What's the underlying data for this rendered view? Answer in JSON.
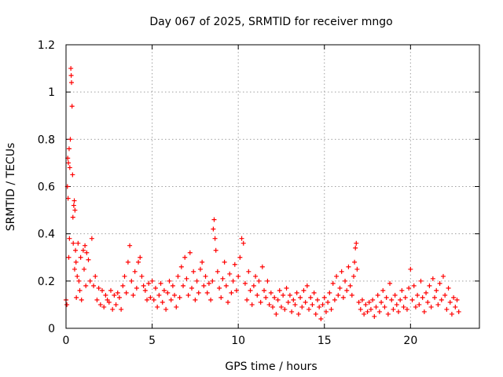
{
  "chart_data": {
    "type": "scatter",
    "title": "Day 067 of 2025, SRMTID for receiver mngo",
    "xlabel": "GPS time / hours",
    "ylabel": "SRMTID / TECUs",
    "xlim": [
      0,
      24
    ],
    "ylim": [
      0,
      1.2
    ],
    "x_ticks": [
      0,
      5,
      10,
      15,
      20
    ],
    "y_ticks": [
      0,
      0.2,
      0.4,
      0.6,
      0.8,
      1,
      1.2
    ],
    "x_tick_labels": [
      "0",
      "5",
      "10",
      "15",
      "20"
    ],
    "y_tick_labels": [
      "0",
      "0.2",
      "0.4",
      "0.6",
      "0.8",
      "1",
      "1.2"
    ],
    "grid": true,
    "marker": "+",
    "series": [
      {
        "name": "SRMTID",
        "color": "#ff0000",
        "points": [
          [
            0.0,
            0.12
          ],
          [
            0.05,
            0.1
          ],
          [
            0.08,
            0.6
          ],
          [
            0.1,
            0.72
          ],
          [
            0.12,
            0.55
          ],
          [
            0.14,
            0.7
          ],
          [
            0.16,
            0.3
          ],
          [
            0.18,
            0.76
          ],
          [
            0.2,
            0.38
          ],
          [
            0.22,
            0.68
          ],
          [
            0.25,
            0.8
          ],
          [
            0.28,
            1.1
          ],
          [
            0.3,
            1.07
          ],
          [
            0.32,
            1.04
          ],
          [
            0.35,
            0.94
          ],
          [
            0.38,
            0.65
          ],
          [
            0.4,
            0.47
          ],
          [
            0.42,
            0.36
          ],
          [
            0.45,
            0.52
          ],
          [
            0.48,
            0.54
          ],
          [
            0.5,
            0.25
          ],
          [
            0.52,
            0.5
          ],
          [
            0.55,
            0.33
          ],
          [
            0.58,
            0.28
          ],
          [
            0.6,
            0.13
          ],
          [
            0.65,
            0.22
          ],
          [
            0.7,
            0.36
          ],
          [
            0.75,
            0.2
          ],
          [
            0.8,
            0.16
          ],
          [
            0.85,
            0.3
          ],
          [
            0.9,
            0.12
          ],
          [
            1.0,
            0.33
          ],
          [
            1.05,
            0.25
          ],
          [
            1.1,
            0.35
          ],
          [
            1.15,
            0.18
          ],
          [
            1.2,
            0.32
          ],
          [
            1.3,
            0.29
          ],
          [
            1.4,
            0.2
          ],
          [
            1.5,
            0.38
          ],
          [
            1.6,
            0.18
          ],
          [
            1.7,
            0.22
          ],
          [
            1.8,
            0.12
          ],
          [
            1.9,
            0.17
          ],
          [
            2.0,
            0.1
          ],
          [
            2.1,
            0.16
          ],
          [
            2.2,
            0.09
          ],
          [
            2.3,
            0.14
          ],
          [
            2.4,
            0.12
          ],
          [
            2.5,
            0.11
          ],
          [
            2.6,
            0.16
          ],
          [
            2.7,
            0.08
          ],
          [
            2.8,
            0.14
          ],
          [
            2.9,
            0.1
          ],
          [
            3.0,
            0.15
          ],
          [
            3.1,
            0.13
          ],
          [
            3.2,
            0.08
          ],
          [
            3.3,
            0.18
          ],
          [
            3.4,
            0.22
          ],
          [
            3.5,
            0.15
          ],
          [
            3.6,
            0.28
          ],
          [
            3.7,
            0.35
          ],
          [
            3.8,
            0.2
          ],
          [
            3.9,
            0.14
          ],
          [
            4.0,
            0.24
          ],
          [
            4.1,
            0.17
          ],
          [
            4.2,
            0.28
          ],
          [
            4.3,
            0.3
          ],
          [
            4.4,
            0.22
          ],
          [
            4.5,
            0.18
          ],
          [
            4.6,
            0.16
          ],
          [
            4.7,
            0.12
          ],
          [
            4.8,
            0.19
          ],
          [
            4.9,
            0.13
          ],
          [
            5.0,
            0.2
          ],
          [
            5.1,
            0.12
          ],
          [
            5.2,
            0.17
          ],
          [
            5.3,
            0.09
          ],
          [
            5.4,
            0.14
          ],
          [
            5.5,
            0.19
          ],
          [
            5.6,
            0.11
          ],
          [
            5.7,
            0.16
          ],
          [
            5.8,
            0.08
          ],
          [
            5.9,
            0.15
          ],
          [
            6.0,
            0.2
          ],
          [
            6.1,
            0.12
          ],
          [
            6.2,
            0.18
          ],
          [
            6.3,
            0.14
          ],
          [
            6.4,
            0.09
          ],
          [
            6.5,
            0.22
          ],
          [
            6.6,
            0.13
          ],
          [
            6.7,
            0.26
          ],
          [
            6.8,
            0.18
          ],
          [
            6.9,
            0.3
          ],
          [
            7.0,
            0.21
          ],
          [
            7.1,
            0.14
          ],
          [
            7.2,
            0.32
          ],
          [
            7.3,
            0.17
          ],
          [
            7.4,
            0.24
          ],
          [
            7.5,
            0.12
          ],
          [
            7.6,
            0.2
          ],
          [
            7.7,
            0.15
          ],
          [
            7.8,
            0.25
          ],
          [
            7.9,
            0.28
          ],
          [
            8.0,
            0.18
          ],
          [
            8.1,
            0.22
          ],
          [
            8.2,
            0.15
          ],
          [
            8.3,
            0.19
          ],
          [
            8.4,
            0.12
          ],
          [
            8.5,
            0.2
          ],
          [
            8.55,
            0.42
          ],
          [
            8.6,
            0.46
          ],
          [
            8.65,
            0.38
          ],
          [
            8.7,
            0.33
          ],
          [
            8.8,
            0.24
          ],
          [
            8.9,
            0.17
          ],
          [
            9.0,
            0.13
          ],
          [
            9.1,
            0.21
          ],
          [
            9.2,
            0.28
          ],
          [
            9.3,
            0.18
          ],
          [
            9.4,
            0.11
          ],
          [
            9.5,
            0.23
          ],
          [
            9.6,
            0.15
          ],
          [
            9.7,
            0.2
          ],
          [
            9.8,
            0.27
          ],
          [
            9.9,
            0.16
          ],
          [
            10.0,
            0.22
          ],
          [
            10.1,
            0.3
          ],
          [
            10.2,
            0.38
          ],
          [
            10.3,
            0.36
          ],
          [
            10.4,
            0.19
          ],
          [
            10.5,
            0.12
          ],
          [
            10.6,
            0.24
          ],
          [
            10.7,
            0.16
          ],
          [
            10.8,
            0.1
          ],
          [
            10.9,
            0.18
          ],
          [
            11.0,
            0.22
          ],
          [
            11.1,
            0.14
          ],
          [
            11.2,
            0.2
          ],
          [
            11.3,
            0.11
          ],
          [
            11.4,
            0.26
          ],
          [
            11.5,
            0.16
          ],
          [
            11.6,
            0.13
          ],
          [
            11.7,
            0.2
          ],
          [
            11.8,
            0.1
          ],
          [
            11.9,
            0.15
          ],
          [
            12.0,
            0.09
          ],
          [
            12.1,
            0.13
          ],
          [
            12.2,
            0.06
          ],
          [
            12.3,
            0.12
          ],
          [
            12.4,
            0.16
          ],
          [
            12.5,
            0.09
          ],
          [
            12.6,
            0.14
          ],
          [
            12.7,
            0.08
          ],
          [
            12.8,
            0.17
          ],
          [
            12.9,
            0.11
          ],
          [
            13.0,
            0.14
          ],
          [
            13.1,
            0.07
          ],
          [
            13.2,
            0.12
          ],
          [
            13.3,
            0.1
          ],
          [
            13.4,
            0.15
          ],
          [
            13.5,
            0.06
          ],
          [
            13.6,
            0.13
          ],
          [
            13.7,
            0.09
          ],
          [
            13.8,
            0.16
          ],
          [
            13.9,
            0.11
          ],
          [
            14.0,
            0.18
          ],
          [
            14.1,
            0.08
          ],
          [
            14.2,
            0.13
          ],
          [
            14.3,
            0.1
          ],
          [
            14.4,
            0.15
          ],
          [
            14.5,
            0.06
          ],
          [
            14.6,
            0.12
          ],
          [
            14.7,
            0.09
          ],
          [
            14.8,
            0.04
          ],
          [
            14.9,
            0.1
          ],
          [
            15.0,
            0.13
          ],
          [
            15.1,
            0.07
          ],
          [
            15.2,
            0.11
          ],
          [
            15.3,
            0.15
          ],
          [
            15.4,
            0.08
          ],
          [
            15.5,
            0.19
          ],
          [
            15.6,
            0.12
          ],
          [
            15.7,
            0.22
          ],
          [
            15.8,
            0.14
          ],
          [
            15.9,
            0.17
          ],
          [
            16.0,
            0.24
          ],
          [
            16.1,
            0.13
          ],
          [
            16.2,
            0.2
          ],
          [
            16.3,
            0.16
          ],
          [
            16.4,
            0.26
          ],
          [
            16.5,
            0.18
          ],
          [
            16.6,
            0.14
          ],
          [
            16.7,
            0.22
          ],
          [
            16.75,
            0.28
          ],
          [
            16.8,
            0.34
          ],
          [
            16.85,
            0.36
          ],
          [
            16.9,
            0.25
          ],
          [
            17.0,
            0.11
          ],
          [
            17.1,
            0.08
          ],
          [
            17.2,
            0.12
          ],
          [
            17.3,
            0.06
          ],
          [
            17.4,
            0.1
          ],
          [
            17.5,
            0.07
          ],
          [
            17.6,
            0.11
          ],
          [
            17.7,
            0.08
          ],
          [
            17.8,
            0.12
          ],
          [
            17.9,
            0.05
          ],
          [
            18.0,
            0.09
          ],
          [
            18.1,
            0.14
          ],
          [
            18.2,
            0.07
          ],
          [
            18.3,
            0.11
          ],
          [
            18.4,
            0.16
          ],
          [
            18.5,
            0.09
          ],
          [
            18.6,
            0.13
          ],
          [
            18.7,
            0.06
          ],
          [
            18.8,
            0.19
          ],
          [
            18.9,
            0.12
          ],
          [
            19.0,
            0.08
          ],
          [
            19.1,
            0.14
          ],
          [
            19.2,
            0.1
          ],
          [
            19.3,
            0.07
          ],
          [
            19.4,
            0.12
          ],
          [
            19.5,
            0.16
          ],
          [
            19.6,
            0.09
          ],
          [
            19.7,
            0.13
          ],
          [
            19.8,
            0.08
          ],
          [
            19.9,
            0.17
          ],
          [
            20.0,
            0.25
          ],
          [
            20.1,
            0.12
          ],
          [
            20.2,
            0.18
          ],
          [
            20.3,
            0.09
          ],
          [
            20.4,
            0.14
          ],
          [
            20.5,
            0.1
          ],
          [
            20.6,
            0.2
          ],
          [
            20.7,
            0.13
          ],
          [
            20.8,
            0.07
          ],
          [
            20.9,
            0.15
          ],
          [
            21.0,
            0.11
          ],
          [
            21.1,
            0.18
          ],
          [
            21.2,
            0.09
          ],
          [
            21.3,
            0.21
          ],
          [
            21.4,
            0.13
          ],
          [
            21.5,
            0.16
          ],
          [
            21.6,
            0.1
          ],
          [
            21.7,
            0.19
          ],
          [
            21.8,
            0.12
          ],
          [
            21.9,
            0.22
          ],
          [
            22.0,
            0.14
          ],
          [
            22.1,
            0.08
          ],
          [
            22.2,
            0.17
          ],
          [
            22.3,
            0.11
          ],
          [
            22.4,
            0.06
          ],
          [
            22.5,
            0.13
          ],
          [
            22.6,
            0.09
          ],
          [
            22.7,
            0.12
          ],
          [
            22.8,
            0.07
          ]
        ]
      }
    ]
  }
}
